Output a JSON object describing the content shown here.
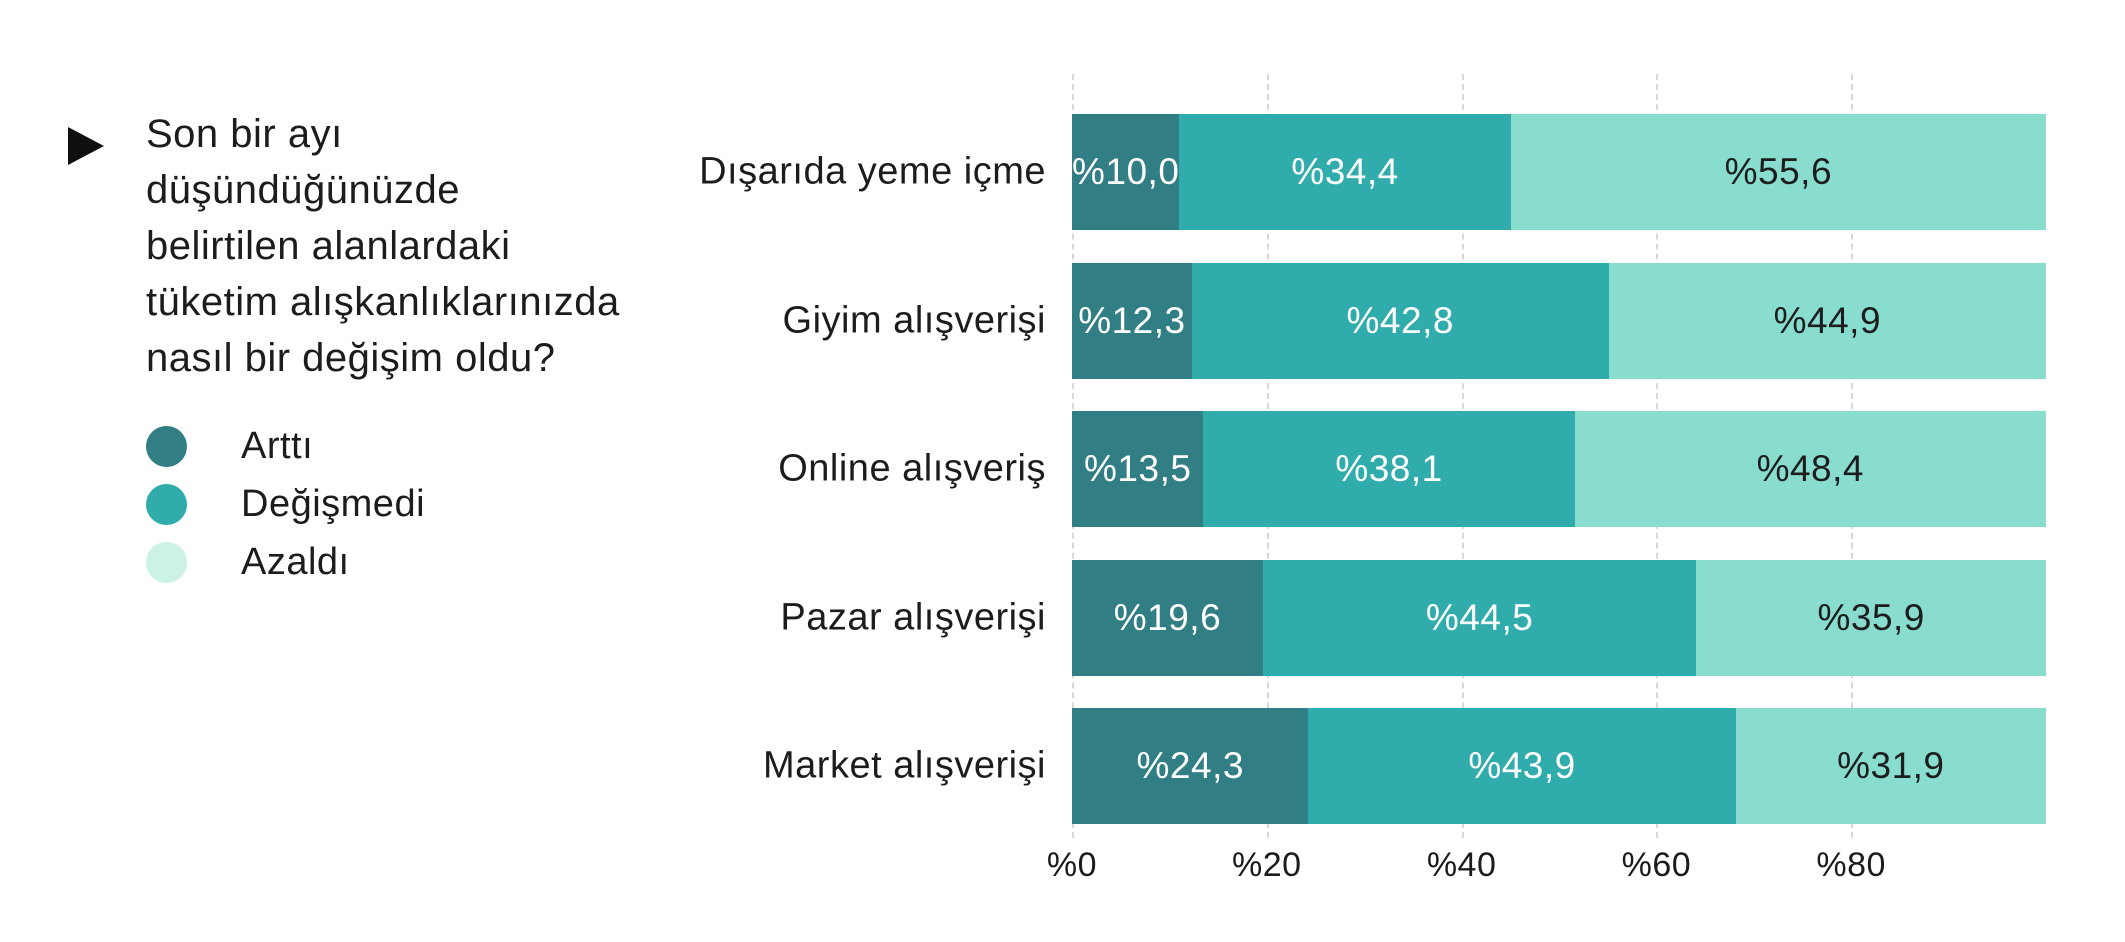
{
  "question": {
    "lines": [
      "Son bir ayı",
      "düşündüğünüzde",
      "belirtilen alanlardaki",
      "tüketim alışkanlıklarınızda",
      "nasıl bir değişim oldu?"
    ],
    "full": "Son bir ayı düşündüğünüzde belirtilen alanlardaki tüketim alışkanlıklarınızda nasıl bir değişim oldu?"
  },
  "legend": {
    "items": [
      {
        "label": "Arttı",
        "color": "#327E85"
      },
      {
        "label": "Değişmedi",
        "color": "#2FACAB"
      },
      {
        "label": "Azaldı",
        "color": "#CBF2E4"
      }
    ]
  },
  "chart_data": {
    "type": "bar",
    "orientation": "horizontal",
    "stacked": true,
    "categories": [
      "Dışarıda yeme içme",
      "Giyim alışverişi",
      "Online alışveriş",
      "Pazar alışverişi",
      "Market alışverişi"
    ],
    "series": [
      {
        "name": "Arttı",
        "color": "#327E85",
        "text_color": "#ffffff",
        "values": [
          10.0,
          12.3,
          13.5,
          19.6,
          24.3
        ],
        "labels": [
          "%10,0",
          "%12,3",
          "%13,5",
          "%19,6",
          "%24,3"
        ]
      },
      {
        "name": "Değişmedi",
        "color": "#2FACAB",
        "text_color": "#ffffff",
        "values": [
          34.4,
          42.8,
          38.1,
          44.5,
          43.9
        ],
        "labels": [
          "%34,4",
          "%42,8",
          "%38,1",
          "%44,5",
          "%43,9"
        ]
      },
      {
        "name": "Azaldı",
        "color": "#88DDCF",
        "text_color": "#1d1d1d",
        "values": [
          55.6,
          44.9,
          48.4,
          35.9,
          31.9
        ],
        "labels": [
          "%55,6",
          "%44,9",
          "%48,4",
          "%35,9",
          "%31,9"
        ]
      }
    ],
    "x_axis": {
      "ticks": [
        {
          "label": "%0",
          "value": 0
        },
        {
          "label": "%20",
          "value": 20
        },
        {
          "label": "%40",
          "value": 40
        },
        {
          "label": "%60",
          "value": 60
        },
        {
          "label": "%80",
          "value": 80
        }
      ],
      "max": 100,
      "grid": "dashed-vertical"
    },
    "xlim": [
      0,
      100
    ],
    "legend_position": "left",
    "title": ""
  }
}
